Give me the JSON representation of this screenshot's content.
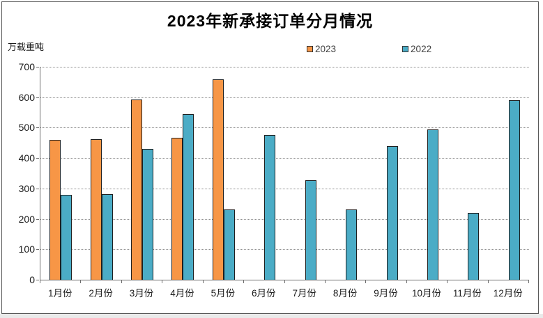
{
  "chart_data": {
    "type": "bar",
    "title": "2023年新承接订单分月情况",
    "ylabel": "万载重吨",
    "xlabel": "",
    "categories": [
      "1月份",
      "2月份",
      "3月份",
      "4月份",
      "5月份",
      "6月份",
      "7月份",
      "8月份",
      "9月份",
      "10月份",
      "11月份",
      "12月份"
    ],
    "series": [
      {
        "name": "2023",
        "color": "#F79646",
        "values": [
          460,
          462,
          592,
          466,
          658,
          null,
          null,
          null,
          null,
          null,
          null,
          null
        ]
      },
      {
        "name": "2022",
        "color": "#4BACC6",
        "values": [
          280,
          282,
          430,
          545,
          230,
          476,
          326,
          232,
          440,
          493,
          220,
          591
        ]
      }
    ],
    "ylim": [
      0,
      700
    ],
    "yticks": [
      0,
      100,
      200,
      300,
      400,
      500,
      600,
      700
    ],
    "grid": "horizontal-dotted",
    "legend_position": "top-center",
    "colors": {
      "grid": "#8f8f8f",
      "axis": "#6e6e6e",
      "bar_outline": "#1f1f1f",
      "text": "#1a1a1a",
      "window_strip": "#eaeaea"
    }
  }
}
